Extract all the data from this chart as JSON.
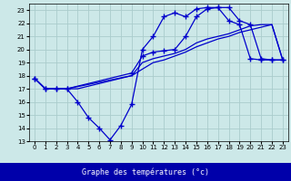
{
  "xlabel": "Graphe des températures (°c)",
  "bg_color": "#cce8e8",
  "grid_color": "#aacccc",
  "line_color": "#0000cc",
  "xlim": [
    -0.5,
    23.5
  ],
  "ylim": [
    13,
    23.5
  ],
  "yticks": [
    13,
    14,
    15,
    16,
    17,
    18,
    19,
    20,
    21,
    22,
    23
  ],
  "xticks": [
    0,
    1,
    2,
    3,
    4,
    5,
    6,
    7,
    8,
    9,
    10,
    11,
    12,
    13,
    14,
    15,
    16,
    17,
    18,
    19,
    20,
    21,
    22,
    23
  ],
  "line1_x": [
    0,
    1,
    2,
    3,
    4,
    5,
    6,
    7,
    8,
    9,
    10,
    11,
    12,
    13,
    14,
    15,
    16,
    17,
    18,
    19,
    20,
    21,
    22,
    23
  ],
  "line1_y": [
    17.8,
    17.0,
    17.0,
    17.0,
    16.0,
    14.8,
    14.0,
    13.1,
    14.2,
    15.8,
    20.0,
    21.0,
    22.5,
    22.8,
    22.5,
    23.1,
    23.2,
    23.2,
    22.2,
    21.9,
    19.3,
    19.2,
    19.2,
    19.2
  ],
  "line2_x": [
    0,
    1,
    2,
    3,
    9,
    10,
    11,
    12,
    13,
    14,
    15,
    16,
    17,
    18,
    19,
    20,
    21,
    22,
    23
  ],
  "line2_y": [
    17.8,
    17.0,
    17.0,
    17.0,
    18.2,
    19.5,
    19.8,
    19.9,
    20.0,
    21.0,
    22.5,
    23.1,
    23.2,
    23.2,
    22.2,
    21.9,
    19.3,
    19.2,
    19.2
  ],
  "line3_x": [
    0,
    1,
    2,
    3,
    4,
    9,
    10,
    11,
    12,
    13,
    14,
    15,
    16,
    17,
    18,
    19,
    20,
    21,
    22,
    23
  ],
  "line3_y": [
    17.8,
    17.0,
    17.0,
    17.0,
    17.0,
    18.0,
    18.5,
    19.0,
    19.2,
    19.5,
    19.8,
    20.2,
    20.5,
    20.8,
    21.0,
    21.3,
    21.5,
    21.7,
    21.9,
    19.2
  ],
  "line4_x": [
    0,
    1,
    2,
    3,
    9,
    10,
    11,
    12,
    13,
    14,
    15,
    16,
    17,
    18,
    19,
    20,
    21,
    22,
    23
  ],
  "line4_y": [
    17.8,
    17.0,
    17.0,
    17.0,
    18.0,
    19.0,
    19.3,
    19.5,
    19.7,
    20.0,
    20.5,
    20.8,
    21.0,
    21.2,
    21.5,
    21.8,
    21.9,
    21.9,
    19.2
  ],
  "xlabel_bg": "#0000aa",
  "xlabel_fg": "#ffffff",
  "xlabel_fontsize": 6
}
